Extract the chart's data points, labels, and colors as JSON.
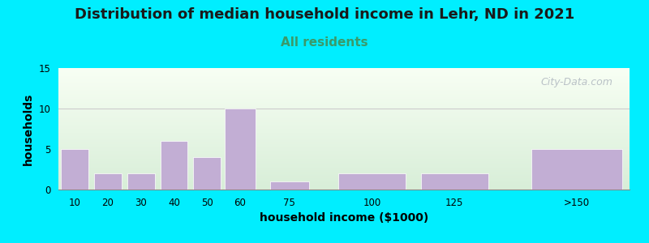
{
  "title": "Distribution of median household income in Lehr, ND in 2021",
  "subtitle": "All residents",
  "xlabel": "household income ($1000)",
  "ylabel": "households",
  "categories": [
    "10",
    "20",
    "30",
    "40",
    "50",
    "60",
    "75",
    "100",
    "125",
    ">150"
  ],
  "x_positions": [
    10,
    20,
    30,
    40,
    50,
    60,
    75,
    100,
    125,
    162
  ],
  "bar_widths": [
    9,
    9,
    9,
    9,
    9,
    10,
    13,
    22,
    22,
    30
  ],
  "values": [
    5,
    2,
    2,
    6,
    4,
    10,
    1,
    2,
    2,
    5
  ],
  "bar_color": "#c2aed4",
  "bar_edgecolor": "#c2aed4",
  "ylim": [
    0,
    15
  ],
  "yticks": [
    0,
    5,
    10,
    15
  ],
  "xlim": [
    5,
    178
  ],
  "xtick_positions": [
    10,
    20,
    30,
    40,
    50,
    60,
    75,
    100,
    125,
    162
  ],
  "background_outer": "#00eeff",
  "background_inner_top": "#f8fff4",
  "background_inner_bottom": "#d8eed8",
  "title_fontsize": 13,
  "subtitle_fontsize": 11,
  "subtitle_color": "#3a9a6a",
  "axis_label_fontsize": 10,
  "watermark": "City-Data.com",
  "watermark_color": "#b0b8c0",
  "grid_color": "#cccccc"
}
